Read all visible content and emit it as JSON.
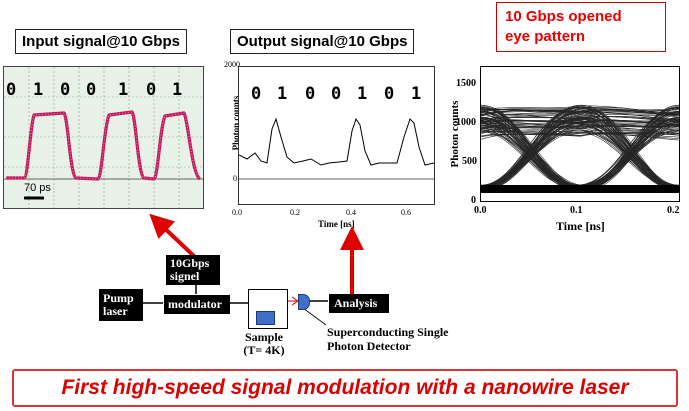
{
  "titles": {
    "input": "Input signal@10 Gbps",
    "output": "Output signal@10 Gbps",
    "eye_line1": "10 Gbps opened",
    "eye_line2": "eye pattern"
  },
  "input_panel": {
    "bits": [
      "0",
      "1",
      "0",
      "0",
      "1",
      "0",
      "1"
    ],
    "scale_label": "70 ps"
  },
  "output_panel": {
    "bits": [
      "0",
      "1",
      "0",
      "0",
      "1",
      "0",
      "1"
    ],
    "y_axis_label": "Photon counts",
    "x_axis_label": "Time [ns]",
    "y_ticks": [
      "2000",
      "0"
    ],
    "x_ticks": [
      "0.0",
      "0.2",
      "0.4",
      "0.6"
    ]
  },
  "eye_panel": {
    "y_axis_label": "Photon counts",
    "x_axis_label": "Time [ns]",
    "y_ticks": [
      "1500",
      "1000",
      "500",
      "0"
    ],
    "x_ticks": [
      "0.0",
      "0.1",
      "0.2"
    ]
  },
  "setup": {
    "signal_label_line1": "10Gbps",
    "signal_label_line2": "signel",
    "pump_line1": "Pump",
    "pump_line2": "laser",
    "modulator": "modulator",
    "analysis": "Analysis",
    "sample_line1": "Sample",
    "sample_line2": "(T= 4K)",
    "detector_line1": "Superconducting Single",
    "detector_line2": "Photon Detector"
  },
  "caption": "First high-speed signal modulation with a nanowire laser",
  "colors": {
    "accent_red": "#e00000",
    "trace_magenta": "#c2185b",
    "scope_green": "#2e7d32"
  }
}
